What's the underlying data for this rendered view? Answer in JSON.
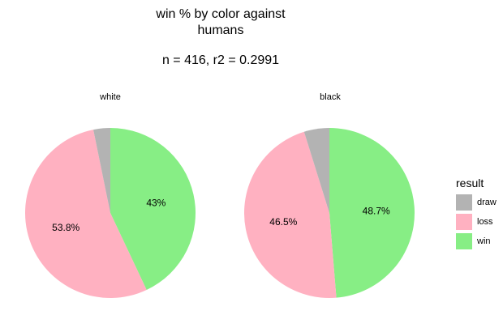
{
  "chart_data": {
    "type": "pie",
    "title_lines": [
      "win % by color against",
      "humans"
    ],
    "subtitle": "n = 416,    r2 = 0.2991",
    "legend_title": "result",
    "categories": [
      "draw",
      "loss",
      "win"
    ],
    "colors": {
      "draw": "#b3b3b3",
      "loss": "#ffb1c1",
      "win": "#87ee85"
    },
    "facets": [
      {
        "name": "white",
        "values": {
          "win": 43.0,
          "loss": 53.8,
          "draw": 3.2
        },
        "labels": {
          "win": "43%",
          "loss": "53.8%"
        }
      },
      {
        "name": "black",
        "values": {
          "win": 48.7,
          "loss": 46.5,
          "draw": 4.8
        },
        "labels": {
          "win": "48.7%",
          "loss": "46.5%"
        }
      }
    ],
    "legend_placement": "right"
  }
}
